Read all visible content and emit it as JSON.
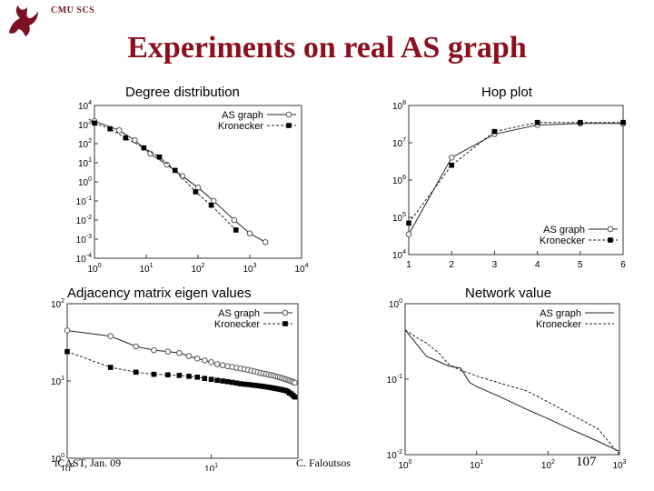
{
  "header": {
    "org": "CMU SCS",
    "title": "Experiments on real AS graph"
  },
  "footer": {
    "venue": "iCAST, Jan. 09",
    "author": "C. Faloutsos",
    "page": "107"
  },
  "chart_data": [
    {
      "id": "degree",
      "type": "scatter",
      "title": "Degree distribution",
      "xscale": "log",
      "yscale": "log",
      "xlim": [
        1,
        10000
      ],
      "ylim": [
        0.0001,
        10000
      ],
      "xticks": [
        {
          "v": 1,
          "b": "10",
          "e": "0"
        },
        {
          "v": 10,
          "b": "10",
          "e": "1"
        },
        {
          "v": 100,
          "b": "10",
          "e": "2"
        },
        {
          "v": 1000,
          "b": "10",
          "e": "3"
        },
        {
          "v": 10000,
          "b": "10",
          "e": "4"
        }
      ],
      "yticks": [
        {
          "v": 0.0001,
          "b": "10",
          "e": "-4"
        },
        {
          "v": 0.001,
          "b": "10",
          "e": "-3"
        },
        {
          "v": 0.01,
          "b": "10",
          "e": "-2"
        },
        {
          "v": 0.1,
          "b": "10",
          "e": "-1"
        },
        {
          "v": 1,
          "b": "10",
          "e": "0"
        },
        {
          "v": 10,
          "b": "10",
          "e": "1"
        },
        {
          "v": 100,
          "b": "10",
          "e": "2"
        },
        {
          "v": 1000,
          "b": "10",
          "e": "3"
        },
        {
          "v": 10000,
          "b": "10",
          "e": "4"
        }
      ],
      "legend": "top-right",
      "series": [
        {
          "name": "AS graph",
          "marker": "circle",
          "dash": "",
          "x": [
            1,
            3,
            6,
            12,
            25,
            50,
            100,
            200,
            500,
            1000,
            2000
          ],
          "y": [
            1500,
            500,
            150,
            30,
            8,
            2,
            0.5,
            0.1,
            0.01,
            0.002,
            0.0007
          ]
        },
        {
          "name": "Kronecker",
          "marker": "square",
          "dash": "3,2",
          "x": [
            1,
            2,
            4,
            9,
            18,
            36,
            90,
            180,
            540
          ],
          "y": [
            1200,
            600,
            200,
            60,
            20,
            4,
            0.3,
            0.06,
            0.003
          ]
        }
      ]
    },
    {
      "id": "hop",
      "type": "line",
      "title": "Hop plot",
      "xscale": "linear",
      "yscale": "log",
      "xlim": [
        1,
        6
      ],
      "ylim": [
        10000,
        100000000
      ],
      "xticks": [
        {
          "v": 1,
          "t": "1"
        },
        {
          "v": 2,
          "t": "2"
        },
        {
          "v": 3,
          "t": "3"
        },
        {
          "v": 4,
          "t": "4"
        },
        {
          "v": 5,
          "t": "5"
        },
        {
          "v": 6,
          "t": "6"
        }
      ],
      "yticks": [
        {
          "v": 10000,
          "b": "10",
          "e": "4"
        },
        {
          "v": 100000,
          "b": "10",
          "e": "5"
        },
        {
          "v": 1000000,
          "b": "10",
          "e": "6"
        },
        {
          "v": 10000000,
          "b": "10",
          "e": "7"
        },
        {
          "v": 100000000,
          "b": "10",
          "e": "8"
        }
      ],
      "legend": "bottom-right",
      "series": [
        {
          "name": "AS graph",
          "marker": "circle",
          "dash": "",
          "x": [
            1,
            2,
            3,
            4,
            5,
            6
          ],
          "y": [
            35000,
            4000000,
            17000000,
            30000000,
            33000000,
            33000000
          ]
        },
        {
          "name": "Kronecker",
          "marker": "square",
          "dash": "3,2",
          "x": [
            1,
            2,
            3,
            4,
            5,
            6
          ],
          "y": [
            70000,
            2500000,
            20000000,
            35000000,
            35000000,
            35000000
          ]
        }
      ]
    },
    {
      "id": "eigen",
      "type": "scatter",
      "title": "Adjacency matrix eigen values",
      "xscale": "log",
      "yscale": "log",
      "xlim": [
        1,
        40
      ],
      "ylim": [
        1,
        100
      ],
      "xticks": [
        {
          "v": 1,
          "b": "10",
          "e": "0"
        },
        {
          "v": 10,
          "b": "10",
          "e": "1"
        }
      ],
      "yticks": [
        {
          "v": 1,
          "b": "10",
          "e": "0"
        },
        {
          "v": 10,
          "b": "10",
          "e": "1"
        },
        {
          "v": 100,
          "b": "10",
          "e": "2"
        }
      ],
      "legend": "top-right",
      "series": [
        {
          "name": "AS graph",
          "marker": "circle",
          "dash": "",
          "x": [
            1,
            2,
            3,
            4,
            5,
            6,
            7,
            8,
            9,
            10,
            11,
            12,
            13,
            14,
            15,
            16,
            17,
            18,
            19,
            20,
            21,
            22,
            23,
            24,
            25,
            26,
            27,
            28,
            29,
            30,
            31,
            32,
            33,
            34,
            35,
            36,
            37,
            38
          ],
          "y": [
            45,
            38,
            28,
            25,
            24,
            23,
            21,
            19.5,
            18.5,
            17.5,
            16.5,
            16,
            15.5,
            15.2,
            14.8,
            14.5,
            14.2,
            13.9,
            13.6,
            13.3,
            13,
            12.7,
            12.5,
            12.3,
            12.1,
            11.9,
            11.7,
            11.5,
            11.3,
            11.1,
            10.9,
            10.7,
            10.5,
            10.3,
            10.1,
            9.9,
            9.7,
            9.5
          ]
        },
        {
          "name": "Kronecker",
          "marker": "square",
          "dash": "3,2",
          "x": [
            1,
            2,
            3,
            4,
            5,
            6,
            7,
            8,
            9,
            10,
            11,
            12,
            13,
            14,
            15,
            16,
            17,
            18,
            19,
            20,
            21,
            22,
            23,
            24,
            25,
            26,
            27,
            28,
            29,
            30,
            31,
            32,
            33,
            34,
            35,
            36,
            37,
            38
          ],
          "y": [
            24,
            15,
            13,
            12.2,
            12,
            11.8,
            11.5,
            11.2,
            10.8,
            10.5,
            10.2,
            10,
            9.8,
            9.6,
            9.4,
            9.2,
            9.1,
            9,
            8.9,
            8.8,
            8.7,
            8.6,
            8.5,
            8.4,
            8.3,
            8.2,
            8.1,
            8,
            7.9,
            7.8,
            7.7,
            7.6,
            7.5,
            7.3,
            7,
            6.8,
            6.5,
            6.2
          ]
        }
      ]
    },
    {
      "id": "netvalue",
      "type": "line",
      "title": "Network value",
      "xscale": "log",
      "yscale": "log",
      "xlim": [
        1,
        1000
      ],
      "ylim": [
        0.01,
        1
      ],
      "xticks": [
        {
          "v": 1,
          "b": "10",
          "e": "0"
        },
        {
          "v": 10,
          "b": "10",
          "e": "1"
        },
        {
          "v": 100,
          "b": "10",
          "e": "2"
        },
        {
          "v": 1000,
          "b": "10",
          "e": "3"
        }
      ],
      "yticks": [
        {
          "v": 0.01,
          "b": "10",
          "e": "-2"
        },
        {
          "v": 0.1,
          "b": "10",
          "e": "-1"
        },
        {
          "v": 1,
          "b": "10",
          "e": "0"
        }
      ],
      "legend": "top-right",
      "series": [
        {
          "name": "AS graph",
          "marker": "none",
          "dash": "",
          "x": [
            1,
            1.5,
            2,
            3,
            4,
            6,
            8,
            10,
            20,
            50,
            100,
            200,
            500,
            1000
          ],
          "y": [
            0.45,
            0.28,
            0.2,
            0.17,
            0.15,
            0.14,
            0.09,
            0.08,
            0.06,
            0.04,
            0.03,
            0.022,
            0.015,
            0.011
          ]
        },
        {
          "name": "Kronecker",
          "marker": "none",
          "dash": "3,2",
          "x": [
            1,
            1.5,
            2,
            3,
            4,
            6,
            8,
            10,
            20,
            50,
            100,
            200,
            500,
            1000
          ],
          "y": [
            0.45,
            0.35,
            0.3,
            0.22,
            0.16,
            0.13,
            0.12,
            0.11,
            0.09,
            0.07,
            0.05,
            0.035,
            0.022,
            0.01
          ]
        }
      ]
    }
  ]
}
